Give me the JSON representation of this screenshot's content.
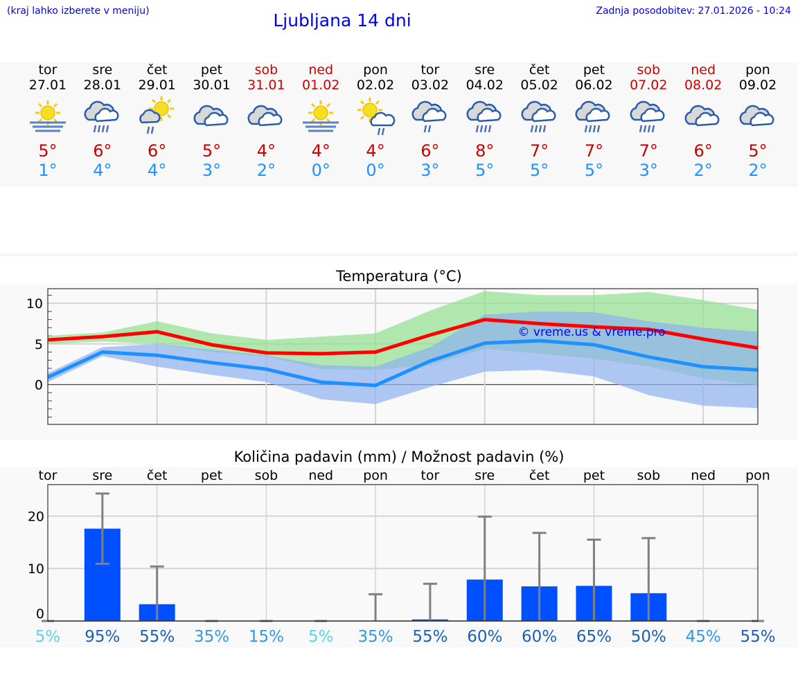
{
  "header": {
    "hint": "(kraj lahko izberete v meniju)",
    "title": "Ljubljana 14 dni",
    "updated": "Zadnja posodobitev: 27.01.2026 - 10:24"
  },
  "colors": {
    "max": "#ff0000",
    "min": "#1e90ff",
    "max_band": "#90e090",
    "min_band": "#8fb0f0",
    "bar": "#0050ff",
    "error": "#808080",
    "weekend": "#cc0000"
  },
  "days": [
    {
      "name": "tor",
      "date": "27.01",
      "weekend": false,
      "icon": "sun-fog-icon",
      "max": "5°",
      "min": "1°"
    },
    {
      "name": "sre",
      "date": "28.01",
      "weekend": false,
      "icon": "cloud-heavy-rain-icon",
      "max": "6°",
      "min": "4°"
    },
    {
      "name": "čet",
      "date": "29.01",
      "weekend": false,
      "icon": "sun-cloud-rain-icon",
      "max": "6°",
      "min": "4°"
    },
    {
      "name": "pet",
      "date": "30.01",
      "weekend": false,
      "icon": "cloudy-icon",
      "max": "5°",
      "min": "3°"
    },
    {
      "name": "sob",
      "date": "31.01",
      "weekend": true,
      "icon": "cloudy-icon",
      "max": "4°",
      "min": "2°"
    },
    {
      "name": "ned",
      "date": "01.02",
      "weekend": true,
      "icon": "sun-fog-icon",
      "max": "4°",
      "min": "0°"
    },
    {
      "name": "pon",
      "date": "02.02",
      "weekend": false,
      "icon": "sun-cloud-light-rain-icon",
      "max": "4°",
      "min": "0°"
    },
    {
      "name": "tor",
      "date": "03.02",
      "weekend": false,
      "icon": "cloud-light-rain-icon",
      "max": "6°",
      "min": "3°"
    },
    {
      "name": "sre",
      "date": "04.02",
      "weekend": false,
      "icon": "cloud-heavy-rain-icon",
      "max": "8°",
      "min": "5°"
    },
    {
      "name": "čet",
      "date": "05.02",
      "weekend": false,
      "icon": "cloud-heavy-rain-icon",
      "max": "7°",
      "min": "5°"
    },
    {
      "name": "pet",
      "date": "06.02",
      "weekend": false,
      "icon": "cloud-heavy-rain-icon",
      "max": "7°",
      "min": "5°"
    },
    {
      "name": "sob",
      "date": "07.02",
      "weekend": true,
      "icon": "cloud-heavy-rain-icon",
      "max": "7°",
      "min": "3°"
    },
    {
      "name": "ned",
      "date": "08.02",
      "weekend": true,
      "icon": "cloudy-icon",
      "max": "6°",
      "min": "2°"
    },
    {
      "name": "pon",
      "date": "09.02",
      "weekend": false,
      "icon": "cloudy-icon",
      "max": "5°",
      "min": "2°"
    }
  ],
  "chart_data": [
    {
      "type": "line",
      "title": "Temperatura (°C)",
      "watermark": "© vreme.us & vreme.pro",
      "ylim": [
        -4.9,
        11.8
      ],
      "yticks": [
        0,
        5,
        10
      ],
      "grid": true,
      "series": [
        {
          "key": "max",
          "values": [
            5.5,
            5.9,
            6.5,
            4.9,
            3.9,
            3.8,
            4.0,
            6.1,
            8.0,
            7.5,
            7.1,
            6.8,
            5.6,
            4.5
          ],
          "band_upper": [
            6.0,
            6.4,
            7.8,
            6.3,
            5.5,
            5.9,
            6.3,
            9.1,
            11.5,
            11.0,
            11.0,
            11.4,
            10.4,
            9.2
          ],
          "band_lower": [
            5.0,
            5.3,
            5.0,
            4.0,
            3.5,
            1.9,
            1.8,
            2.4,
            4.4,
            3.8,
            3.2,
            2.2,
            0.8,
            -0.1
          ]
        },
        {
          "key": "min",
          "values": [
            0.9,
            4.0,
            3.6,
            2.7,
            1.9,
            0.3,
            -0.1,
            2.9,
            5.1,
            5.4,
            4.9,
            3.4,
            2.2,
            1.8
          ],
          "band_upper": [
            1.4,
            4.6,
            5.0,
            4.3,
            3.6,
            2.4,
            2.2,
            4.6,
            8.6,
            9.0,
            8.9,
            7.8,
            7.0,
            6.5
          ],
          "band_lower": [
            0.3,
            3.5,
            2.2,
            1.2,
            0.3,
            -1.8,
            -2.4,
            -0.3,
            1.6,
            1.8,
            1.0,
            -1.3,
            -2.6,
            -2.9
          ]
        }
      ]
    },
    {
      "type": "bar",
      "title": "Količina padavin (mm) / Možnost padavin (%)",
      "categories": [
        "tor",
        "sre",
        "čet",
        "pet",
        "sob",
        "ned",
        "pon",
        "tor",
        "sre",
        "čet",
        "pet",
        "sob",
        "ned",
        "pon"
      ],
      "ylim": [
        0,
        26
      ],
      "yticks": [
        0,
        10,
        20
      ],
      "grid": true,
      "values": [
        0,
        17.6,
        3.2,
        0,
        0,
        0,
        0,
        0.3,
        7.9,
        6.6,
        6.7,
        5.3,
        0,
        0
      ],
      "error_low": [
        0,
        10.9,
        0,
        0,
        0,
        0,
        0,
        0,
        0,
        0,
        0,
        0,
        0,
        0
      ],
      "error_high": [
        0,
        24.3,
        10.4,
        0,
        0,
        0,
        5.1,
        7.1,
        19.9,
        16.8,
        15.5,
        15.8,
        0,
        0
      ],
      "probability": [
        "5%",
        "95%",
        "55%",
        "35%",
        "15%",
        "5%",
        "35%",
        "55%",
        "60%",
        "60%",
        "65%",
        "50%",
        "45%",
        "55%"
      ],
      "probability_colors": [
        "#5ad4ea",
        "#1a5fb4",
        "#1a5fb4",
        "#3399dd",
        "#3399dd",
        "#5ad4ea",
        "#3399dd",
        "#1a5fb4",
        "#1a5fb4",
        "#1a5fb4",
        "#1a5fb4",
        "#1a5fb4",
        "#3399dd",
        "#1a5fb4"
      ]
    }
  ]
}
